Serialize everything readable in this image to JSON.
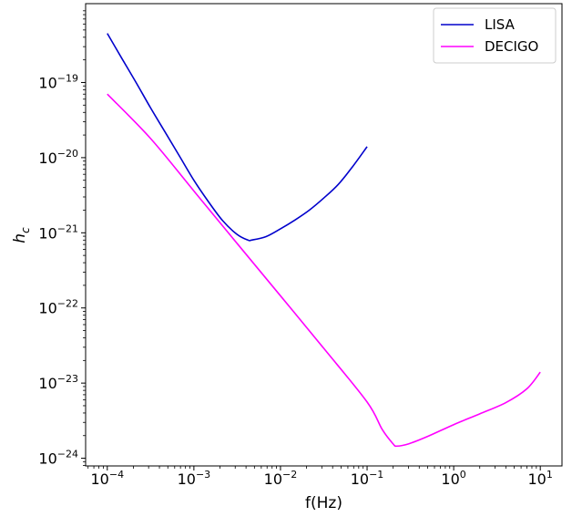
{
  "chart_data": {
    "type": "line",
    "title": "",
    "xlabel": "f(Hz)",
    "ylabel": "h_c",
    "xscale": "log",
    "yscale": "log",
    "xlim": [
      5.62e-05,
      17.8
    ],
    "ylim": [
      7.9e-25,
      1.12e-18
    ],
    "xticks": [
      {
        "value": 0.0001,
        "base": "10",
        "exp": "−4"
      },
      {
        "value": 0.001,
        "base": "10",
        "exp": "−3"
      },
      {
        "value": 0.01,
        "base": "10",
        "exp": "−2"
      },
      {
        "value": 0.1,
        "base": "10",
        "exp": "−1"
      },
      {
        "value": 1,
        "base": "10",
        "exp": "0"
      },
      {
        "value": 10,
        "base": "10",
        "exp": "1"
      }
    ],
    "yticks": [
      {
        "value": 1e-24,
        "base": "10",
        "exp": "−24"
      },
      {
        "value": 1e-23,
        "base": "10",
        "exp": "−23"
      },
      {
        "value": 1e-22,
        "base": "10",
        "exp": "−22"
      },
      {
        "value": 1e-21,
        "base": "10",
        "exp": "−21"
      },
      {
        "value": 1e-20,
        "base": "10",
        "exp": "−20"
      },
      {
        "value": 1e-19,
        "base": "10",
        "exp": "−19"
      }
    ],
    "grid": false,
    "legend_position": "top-right",
    "series": [
      {
        "name": "LISA",
        "color": "#0000cc",
        "x": [
          0.0001,
          0.000147,
          0.000215,
          0.000316,
          0.000464,
          0.000681,
          0.001,
          0.00147,
          0.00215,
          0.00316,
          0.0042,
          0.00464,
          0.00681,
          0.01,
          0.0147,
          0.0215,
          0.0316,
          0.0464,
          0.0681,
          0.1
        ],
        "y": [
          4.5e-19,
          2.1e-19,
          1e-19,
          4.6e-20,
          2.2e-20,
          1.05e-20,
          5e-21,
          2.6e-21,
          1.45e-21,
          9.5e-22,
          8e-22,
          8e-22,
          8.9e-22,
          1.13e-21,
          1.48e-21,
          2e-21,
          2.9e-21,
          4.4e-21,
          7.6e-21,
          1.4e-20
        ]
      },
      {
        "name": "DECIGO",
        "color": "#ff00ff",
        "x": [
          0.0001,
          0.000316,
          0.001,
          0.00316,
          0.01,
          0.0316,
          0.1,
          0.15,
          0.2,
          0.22,
          0.3,
          0.5,
          1,
          2,
          4,
          7,
          10
        ],
        "y": [
          7e-20,
          1.8e-20,
          3.6e-21,
          7.2e-22,
          1.45e-22,
          2.9e-23,
          5.6e-24,
          2.4e-24,
          1.55e-24,
          1.45e-24,
          1.55e-24,
          1.95e-24,
          2.8e-24,
          3.9e-24,
          5.5e-24,
          8.4e-24,
          1.4e-23
        ]
      }
    ]
  }
}
